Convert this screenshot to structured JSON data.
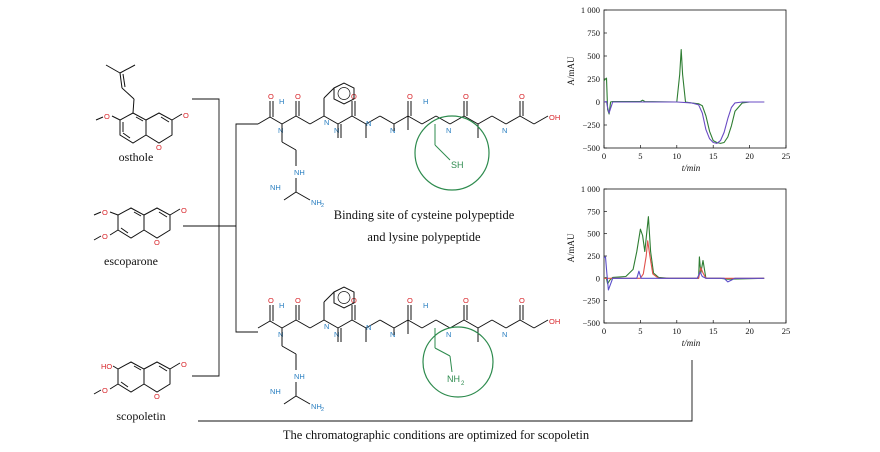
{
  "compounds": [
    {
      "name": "osthole",
      "atoms": {
        "o_ring": "O",
        "o_carbonyl": "O",
        "o_methoxy": "O"
      }
    },
    {
      "name": "escoparone",
      "atoms": {
        "o1": "O",
        "o2": "O",
        "o_ring": "O",
        "o_carbonyl": "O"
      }
    },
    {
      "name": "scopoletin",
      "atoms": {
        "hydroxy": "HO",
        "o_ring": "O",
        "o_carbonyl": "O",
        "o_methoxy": "O"
      }
    }
  ],
  "peptides": {
    "caption_line1": "Binding site of cysteine polypeptide",
    "caption_line2": "and lysine polypeptide",
    "atoms": {
      "H": "H",
      "N": "N",
      "NH": "NH",
      "NH2": "NH",
      "NH2_sub": "2",
      "OH": "OH",
      "O": "O",
      "SH": "SH",
      "Lys_NH": "NH",
      "Lys_sub": "2"
    },
    "colors": {
      "nitrogen": "#2a7fc1",
      "oxygen": "#d8262b",
      "site": "#2e8b4e"
    }
  },
  "bottom_caption": "The chromatographic conditions are optimized for scopoletin",
  "chart_data": [
    {
      "type": "line",
      "xlabel": "t/min",
      "ylabel": "A/mAU",
      "xlim": [
        0,
        25
      ],
      "ylim": [
        -500,
        1000
      ],
      "xticks": [
        "0",
        "5",
        "10",
        "15",
        "20",
        "25"
      ],
      "yticks": [
        "1 000",
        "750",
        "500",
        "250",
        "0",
        "−250",
        "−500"
      ],
      "series": [
        {
          "color": "#2e7d32",
          "x": [
            0,
            0.2,
            0.35,
            0.5,
            0.7,
            0.9,
            1.2,
            5,
            5.3,
            5.6,
            10,
            10.4,
            10.6,
            10.8,
            11.2,
            12,
            13,
            13.5,
            14,
            14.5,
            15,
            15.5,
            16,
            16.5,
            17,
            17.5,
            18,
            19,
            20,
            22
          ],
          "y": [
            230,
            250,
            260,
            -80,
            -130,
            0,
            5,
            5,
            20,
            5,
            0,
            300,
            570,
            300,
            0,
            -10,
            -20,
            -40,
            -150,
            -320,
            -420,
            -440,
            -450,
            -440,
            -380,
            -260,
            -100,
            -10,
            0,
            0
          ]
        },
        {
          "color": "#6a4bc4",
          "x": [
            0,
            0.35,
            0.5,
            0.7,
            1.2,
            10,
            12,
            13,
            13.5,
            14,
            14.5,
            15,
            15.5,
            16,
            16.5,
            17,
            17.5,
            18,
            19,
            22
          ],
          "y": [
            0,
            5,
            -60,
            -120,
            0,
            0,
            -10,
            -30,
            -120,
            -300,
            -400,
            -440,
            -450,
            -420,
            -330,
            -180,
            -60,
            -10,
            0,
            0
          ]
        }
      ]
    },
    {
      "type": "line",
      "xlabel": "t/min",
      "ylabel": "A/mAU",
      "xlim": [
        0,
        25
      ],
      "ylim": [
        -500,
        1000
      ],
      "xticks": [
        "0",
        "5",
        "10",
        "15",
        "20",
        "25"
      ],
      "yticks": [
        "1 000",
        "750",
        "500",
        "250",
        "0",
        "−250",
        "−500"
      ],
      "series": [
        {
          "color": "#2e7d32",
          "x": [
            0,
            0.3,
            0.5,
            0.8,
            1.2,
            3,
            4,
            4.5,
            5,
            5.3,
            5.6,
            5.8,
            6.1,
            6.4,
            6.8,
            7.5,
            9,
            11,
            13,
            13.1,
            13.3,
            13.6,
            14,
            16,
            17,
            22
          ],
          "y": [
            0,
            10,
            -60,
            -20,
            10,
            20,
            100,
            300,
            550,
            480,
            300,
            450,
            690,
            300,
            60,
            10,
            0,
            0,
            0,
            240,
            60,
            200,
            0,
            0,
            -10,
            0
          ]
        },
        {
          "color": "#e0524d",
          "x": [
            0,
            1.2,
            5,
            5.4,
            5.8,
            6.0,
            6.3,
            6.7,
            7.5,
            13,
            13.3,
            13.6,
            14,
            22
          ],
          "y": [
            0,
            0,
            0,
            50,
            250,
            420,
            250,
            50,
            0,
            0,
            120,
            60,
            0,
            0
          ]
        },
        {
          "color": "#5b4fc9",
          "x": [
            0,
            0.2,
            0.4,
            0.6,
            1.2,
            4.5,
            4.8,
            5.1,
            7,
            12.8,
            13.2,
            13.5,
            14,
            16.5,
            17,
            17.5,
            18,
            22
          ],
          "y": [
            230,
            240,
            50,
            -130,
            0,
            0,
            80,
            0,
            0,
            0,
            70,
            20,
            0,
            0,
            -40,
            -20,
            0,
            0
          ]
        }
      ]
    }
  ]
}
